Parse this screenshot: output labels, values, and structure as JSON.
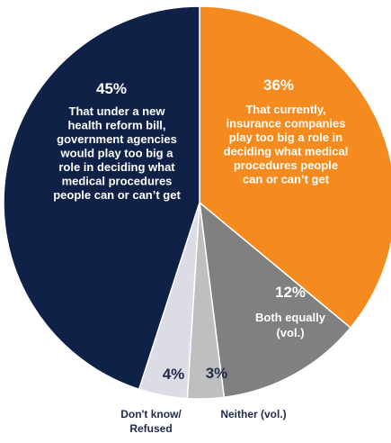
{
  "chart_data": {
    "type": "pie",
    "start_angle_deg": 0,
    "direction": "clockwise",
    "slices": [
      {
        "value": 36,
        "pct_label": "36%",
        "label_lines": [
          "That currently,",
          "insurance companies",
          "play too big a role in",
          "deciding what medical",
          "procedures people",
          "can or can’t get"
        ],
        "color": "#F58B1F",
        "text_color": "#ffffff"
      },
      {
        "value": 12,
        "pct_label": "12%",
        "label_lines": [
          "Both equally",
          "(vol.)"
        ],
        "color": "#808080",
        "text_color": "#ffffff"
      },
      {
        "value": 3,
        "pct_label": "3%",
        "label_lines": [
          "Neither (vol.)"
        ],
        "color": "#BFBFBF",
        "text_color": "#1F2A4D"
      },
      {
        "value": 4,
        "pct_label": "4%",
        "label_lines": [
          "Don't know/",
          "Refused"
        ],
        "color": "#DCDCE6",
        "text_color": "#1F2A4D"
      },
      {
        "value": 45,
        "pct_label": "45%",
        "label_lines": [
          "That under a new",
          "health reform bill,",
          "government agencies",
          "would play too big a",
          "role in deciding what",
          "medical procedures",
          "people can or can’t get"
        ],
        "color": "#0F2147",
        "text_color": "#ffffff"
      }
    ]
  }
}
